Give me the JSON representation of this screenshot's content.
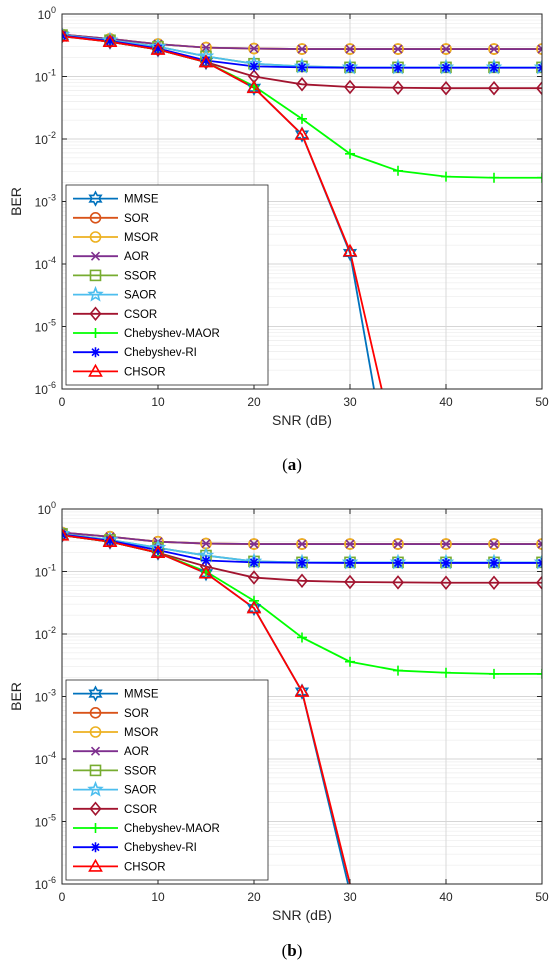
{
  "chart_data": [
    {
      "type": "line",
      "panel": "a",
      "caption": "(a)",
      "caption_letter": "a",
      "xlabel": "SNR (dB)",
      "ylabel": "BER",
      "xlim": [
        0,
        50
      ],
      "ylim": [
        1e-06,
        1
      ],
      "yscale": "log",
      "grid": true,
      "legend_position": "bottom-left",
      "x_ticks": [
        0,
        10,
        20,
        30,
        40,
        50
      ],
      "y_ticks": [
        {
          "base": "10",
          "exp": "0",
          "value": 1
        },
        {
          "base": "10",
          "exp": "-1",
          "value": 0.1
        },
        {
          "base": "10",
          "exp": "-2",
          "value": 0.01
        },
        {
          "base": "10",
          "exp": "-3",
          "value": 0.001
        },
        {
          "base": "10",
          "exp": "-4",
          "value": 0.0001
        },
        {
          "base": "10",
          "exp": "-5",
          "value": 1e-05
        },
        {
          "base": "10",
          "exp": "-6",
          "value": 1e-06
        }
      ],
      "series": [
        {
          "name": "MMSE",
          "color": "#0072BD",
          "marker": "hexagram",
          "x": [
            0,
            5,
            10,
            15,
            20,
            25,
            30,
            32.5
          ],
          "y": [
            0.45,
            0.36,
            0.27,
            0.17,
            0.066,
            0.0118,
            0.00015,
            1e-06
          ]
        },
        {
          "name": "SOR",
          "color": "#D95319",
          "marker": "circle",
          "x": [
            0,
            5,
            10,
            15,
            20,
            25,
            30,
            35,
            40,
            45,
            50
          ],
          "y": [
            0.47,
            0.4,
            0.33,
            0.29,
            0.28,
            0.275,
            0.275,
            0.275,
            0.275,
            0.275,
            0.275
          ]
        },
        {
          "name": "MSOR",
          "color": "#EDB120",
          "marker": "circle",
          "x": [
            0,
            5,
            10,
            15,
            20,
            25,
            30,
            35,
            40,
            45,
            50
          ],
          "y": [
            0.47,
            0.4,
            0.33,
            0.29,
            0.28,
            0.275,
            0.275,
            0.275,
            0.275,
            0.275,
            0.275
          ]
        },
        {
          "name": "AOR",
          "color": "#7E2F8E",
          "marker": "x",
          "x": [
            0,
            5,
            10,
            15,
            20,
            25,
            30,
            35,
            40,
            45,
            50
          ],
          "y": [
            0.47,
            0.4,
            0.33,
            0.29,
            0.28,
            0.275,
            0.275,
            0.275,
            0.275,
            0.275,
            0.275
          ]
        },
        {
          "name": "SSOR",
          "color": "#77AC30",
          "marker": "square",
          "x": [
            0,
            5,
            10,
            15,
            20,
            25,
            30,
            35,
            40,
            45,
            50
          ],
          "y": [
            0.46,
            0.38,
            0.3,
            0.21,
            0.16,
            0.145,
            0.14,
            0.14,
            0.14,
            0.14,
            0.14
          ]
        },
        {
          "name": "SAOR",
          "color": "#4DBEEE",
          "marker": "star",
          "x": [
            0,
            5,
            10,
            15,
            20,
            25,
            30,
            35,
            40,
            45,
            50
          ],
          "y": [
            0.46,
            0.38,
            0.3,
            0.21,
            0.16,
            0.145,
            0.14,
            0.14,
            0.14,
            0.14,
            0.14
          ]
        },
        {
          "name": "CSOR",
          "color": "#A2142F",
          "marker": "diamond",
          "x": [
            0,
            5,
            10,
            15,
            20,
            25,
            30,
            35,
            40,
            45,
            50
          ],
          "y": [
            0.44,
            0.36,
            0.27,
            0.17,
            0.1,
            0.075,
            0.068,
            0.066,
            0.065,
            0.065,
            0.065
          ]
        },
        {
          "name": "Chebyshev-MAOR",
          "color": "#00FF00",
          "marker": "plus",
          "x": [
            0,
            5,
            10,
            15,
            20,
            25,
            30,
            35,
            40,
            45,
            50
          ],
          "y": [
            0.45,
            0.36,
            0.27,
            0.17,
            0.07,
            0.021,
            0.0058,
            0.0031,
            0.0025,
            0.0024,
            0.0024
          ]
        },
        {
          "name": "Chebyshev-RI",
          "color": "#0000FF",
          "marker": "asterisk",
          "x": [
            0,
            5,
            10,
            15,
            20,
            25,
            30,
            35,
            40,
            45,
            50
          ],
          "y": [
            0.45,
            0.37,
            0.28,
            0.18,
            0.145,
            0.14,
            0.138,
            0.138,
            0.138,
            0.138,
            0.138
          ]
        },
        {
          "name": "CHSOR",
          "color": "#FF0000",
          "marker": "triangle",
          "x": [
            0,
            5,
            10,
            15,
            20,
            25,
            30,
            33.3
          ],
          "y": [
            0.44,
            0.36,
            0.27,
            0.17,
            0.066,
            0.0118,
            0.00016,
            1e-06
          ]
        }
      ]
    },
    {
      "type": "line",
      "panel": "b",
      "caption": "(b)",
      "caption_letter": "b",
      "xlabel": "SNR (dB)",
      "ylabel": "BER",
      "xlim": [
        0,
        50
      ],
      "ylim": [
        1e-06,
        1
      ],
      "yscale": "log",
      "grid": true,
      "legend_position": "bottom-left",
      "x_ticks": [
        0,
        10,
        20,
        30,
        40,
        50
      ],
      "y_ticks": [
        {
          "base": "10",
          "exp": "0",
          "value": 1
        },
        {
          "base": "10",
          "exp": "-1",
          "value": 0.1
        },
        {
          "base": "10",
          "exp": "-2",
          "value": 0.01
        },
        {
          "base": "10",
          "exp": "-3",
          "value": 0.001
        },
        {
          "base": "10",
          "exp": "-4",
          "value": 0.0001
        },
        {
          "base": "10",
          "exp": "-5",
          "value": 1e-05
        },
        {
          "base": "10",
          "exp": "-6",
          "value": 1e-06
        }
      ],
      "series": [
        {
          "name": "MMSE",
          "color": "#0072BD",
          "marker": "hexagram",
          "x": [
            0,
            5,
            10,
            15,
            20,
            25,
            29.8
          ],
          "y": [
            0.38,
            0.3,
            0.2,
            0.094,
            0.026,
            0.0012,
            1e-06
          ]
        },
        {
          "name": "SOR",
          "color": "#D95319",
          "marker": "circle",
          "x": [
            0,
            5,
            10,
            15,
            20,
            25,
            30,
            35,
            40,
            45,
            50
          ],
          "y": [
            0.42,
            0.36,
            0.3,
            0.28,
            0.275,
            0.275,
            0.275,
            0.275,
            0.275,
            0.275,
            0.275
          ]
        },
        {
          "name": "MSOR",
          "color": "#EDB120",
          "marker": "circle",
          "x": [
            0,
            5,
            10,
            15,
            20,
            25,
            30,
            35,
            40,
            45,
            50
          ],
          "y": [
            0.42,
            0.36,
            0.3,
            0.28,
            0.275,
            0.275,
            0.275,
            0.275,
            0.275,
            0.275,
            0.275
          ]
        },
        {
          "name": "AOR",
          "color": "#7E2F8E",
          "marker": "x",
          "x": [
            0,
            5,
            10,
            15,
            20,
            25,
            30,
            35,
            40,
            45,
            50
          ],
          "y": [
            0.42,
            0.36,
            0.3,
            0.28,
            0.275,
            0.275,
            0.275,
            0.275,
            0.275,
            0.275,
            0.275
          ]
        },
        {
          "name": "SSOR",
          "color": "#77AC30",
          "marker": "square",
          "x": [
            0,
            5,
            10,
            15,
            20,
            25,
            30,
            35,
            40,
            45,
            50
          ],
          "y": [
            0.4,
            0.32,
            0.24,
            0.18,
            0.145,
            0.14,
            0.14,
            0.14,
            0.14,
            0.14,
            0.14
          ]
        },
        {
          "name": "SAOR",
          "color": "#4DBEEE",
          "marker": "star",
          "x": [
            0,
            5,
            10,
            15,
            20,
            25,
            30,
            35,
            40,
            45,
            50
          ],
          "y": [
            0.4,
            0.32,
            0.24,
            0.18,
            0.145,
            0.14,
            0.14,
            0.14,
            0.14,
            0.14,
            0.14
          ]
        },
        {
          "name": "CSOR",
          "color": "#A2142F",
          "marker": "diamond",
          "x": [
            0,
            5,
            10,
            15,
            20,
            25,
            30,
            35,
            40,
            45,
            50
          ],
          "y": [
            0.38,
            0.3,
            0.2,
            0.12,
            0.08,
            0.071,
            0.068,
            0.067,
            0.066,
            0.066,
            0.066
          ]
        },
        {
          "name": "Chebyshev-MAOR",
          "color": "#00FF00",
          "marker": "plus",
          "x": [
            0,
            5,
            10,
            15,
            20,
            25,
            30,
            35,
            40,
            45,
            50
          ],
          "y": [
            0.38,
            0.3,
            0.2,
            0.1,
            0.034,
            0.0088,
            0.0036,
            0.0026,
            0.0024,
            0.0023,
            0.0023
          ]
        },
        {
          "name": "Chebyshev-RI",
          "color": "#0000FF",
          "marker": "asterisk",
          "x": [
            0,
            5,
            10,
            15,
            20,
            25,
            30,
            35,
            40,
            45,
            50
          ],
          "y": [
            0.39,
            0.31,
            0.22,
            0.15,
            0.14,
            0.138,
            0.137,
            0.137,
            0.137,
            0.137,
            0.137
          ]
        },
        {
          "name": "CHSOR",
          "color": "#FF0000",
          "marker": "triangle",
          "x": [
            0,
            5,
            10,
            15,
            20,
            25,
            30
          ],
          "y": [
            0.38,
            0.3,
            0.2,
            0.094,
            0.026,
            0.0012,
            1e-06
          ]
        }
      ]
    }
  ]
}
